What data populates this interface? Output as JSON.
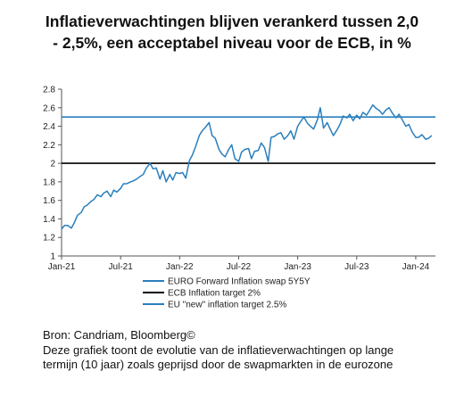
{
  "title": {
    "line1": "Inflatieverwachtingen blijven verankerd tussen 2,0",
    "line2": "- 2,5%, een acceptabel niveau voor de ECB, in %"
  },
  "footer": {
    "source": "Bron: Candriam, Bloomberg©",
    "caption_line1": "Deze grafiek toont de evolutie van de inflatieverwachtingen op lange",
    "caption_line2": "termijn (10 jaar) zoals geprijsd door de swapmarkten in de eurozone"
  },
  "chart_data": {
    "type": "line",
    "title": "Inflatieverwachtingen blijven verankerd tussen 2,0 - 2,5%, een acceptabel niveau voor de ECB, in %",
    "ylim": [
      1,
      2.8
    ],
    "yticks": [
      "1",
      "1.2",
      "1.4",
      "1.6",
      "1.8",
      "2",
      "2.2",
      "2.4",
      "2.6",
      "2.8"
    ],
    "xlim": [
      "2021-01",
      "2024-03"
    ],
    "xticks": [
      "Jan-21",
      "Jul-21",
      "Jan-22",
      "Jul-22",
      "Jan-23",
      "Jul-23",
      "Jan-24"
    ],
    "grid": false,
    "legend_position": "bottom-left",
    "colors": {
      "swap": "#2a7fbd",
      "ecb": "#000000",
      "eu": "#2a7fbd"
    },
    "series": [
      {
        "name": "EURO Forward Inflation swap 5Y5Y",
        "x": [
          "2021-01-01",
          "2021-01-10",
          "2021-01-20",
          "2021-02-01",
          "2021-02-10",
          "2021-02-20",
          "2021-03-01",
          "2021-03-10",
          "2021-03-20",
          "2021-04-01",
          "2021-04-10",
          "2021-04-20",
          "2021-05-01",
          "2021-05-10",
          "2021-05-20",
          "2021-06-01",
          "2021-06-10",
          "2021-06-20",
          "2021-07-01",
          "2021-07-10",
          "2021-07-20",
          "2021-08-01",
          "2021-08-10",
          "2021-08-20",
          "2021-09-01",
          "2021-09-10",
          "2021-09-20",
          "2021-10-01",
          "2021-10-10",
          "2021-10-20",
          "2021-11-01",
          "2021-11-10",
          "2021-11-20",
          "2021-12-01",
          "2021-12-10",
          "2021-12-20",
          "2022-01-01",
          "2022-01-10",
          "2022-01-20",
          "2022-02-01",
          "2022-02-10",
          "2022-02-20",
          "2022-03-01",
          "2022-03-10",
          "2022-03-20",
          "2022-04-01",
          "2022-04-10",
          "2022-04-20",
          "2022-05-01",
          "2022-05-10",
          "2022-05-20",
          "2022-06-01",
          "2022-06-10",
          "2022-06-20",
          "2022-07-01",
          "2022-07-10",
          "2022-07-20",
          "2022-08-01",
          "2022-08-10",
          "2022-08-20",
          "2022-09-01",
          "2022-09-10",
          "2022-09-20",
          "2022-10-01",
          "2022-10-10",
          "2022-10-20",
          "2022-11-01",
          "2022-11-10",
          "2022-11-20",
          "2022-12-01",
          "2022-12-10",
          "2022-12-20",
          "2023-01-01",
          "2023-01-10",
          "2023-01-20",
          "2023-02-01",
          "2023-02-10",
          "2023-02-20",
          "2023-03-01",
          "2023-03-10",
          "2023-03-20",
          "2023-04-01",
          "2023-04-10",
          "2023-04-20",
          "2023-05-01",
          "2023-05-10",
          "2023-05-20",
          "2023-06-01",
          "2023-06-10",
          "2023-06-20",
          "2023-07-01",
          "2023-07-10",
          "2023-07-20",
          "2023-08-01",
          "2023-08-10",
          "2023-08-20",
          "2023-09-01",
          "2023-09-10",
          "2023-09-20",
          "2023-10-01",
          "2023-10-10",
          "2023-10-20",
          "2023-11-01",
          "2023-11-10",
          "2023-11-20",
          "2023-12-01",
          "2023-12-10",
          "2023-12-20",
          "2024-01-01",
          "2024-01-10",
          "2024-01-20",
          "2024-02-01",
          "2024-02-10",
          "2024-02-20"
        ],
        "y": [
          1.29,
          1.33,
          1.33,
          1.3,
          1.36,
          1.44,
          1.47,
          1.53,
          1.55,
          1.59,
          1.61,
          1.66,
          1.64,
          1.68,
          1.7,
          1.64,
          1.71,
          1.69,
          1.73,
          1.78,
          1.78,
          1.8,
          1.81,
          1.83,
          1.86,
          1.88,
          1.95,
          2.0,
          1.94,
          1.95,
          1.83,
          1.92,
          1.8,
          1.88,
          1.82,
          1.9,
          1.89,
          1.9,
          1.84,
          2.03,
          2.09,
          2.18,
          2.3,
          2.35,
          2.39,
          2.44,
          2.3,
          2.27,
          2.15,
          2.1,
          2.07,
          2.15,
          2.2,
          2.05,
          2.02,
          2.12,
          2.15,
          2.16,
          2.05,
          2.13,
          2.14,
          2.22,
          2.17,
          2.02,
          2.28,
          2.29,
          2.32,
          2.33,
          2.26,
          2.3,
          2.35,
          2.26,
          2.4,
          2.45,
          2.5,
          2.43,
          2.4,
          2.37,
          2.47,
          2.6,
          2.38,
          2.44,
          2.37,
          2.3,
          2.36,
          2.42,
          2.51,
          2.49,
          2.53,
          2.46,
          2.52,
          2.48,
          2.55,
          2.52,
          2.57,
          2.63,
          2.59,
          2.57,
          2.53,
          2.58,
          2.6,
          2.54,
          2.49,
          2.53,
          2.47,
          2.4,
          2.42,
          2.34,
          2.28,
          2.28,
          2.31,
          2.26,
          2.27,
          2.3
        ]
      },
      {
        "name": "ECB Inflation target 2%",
        "value": 2.0
      },
      {
        "name": "EU \"new\" inflation target 2.5%",
        "value": 2.5
      }
    ]
  }
}
